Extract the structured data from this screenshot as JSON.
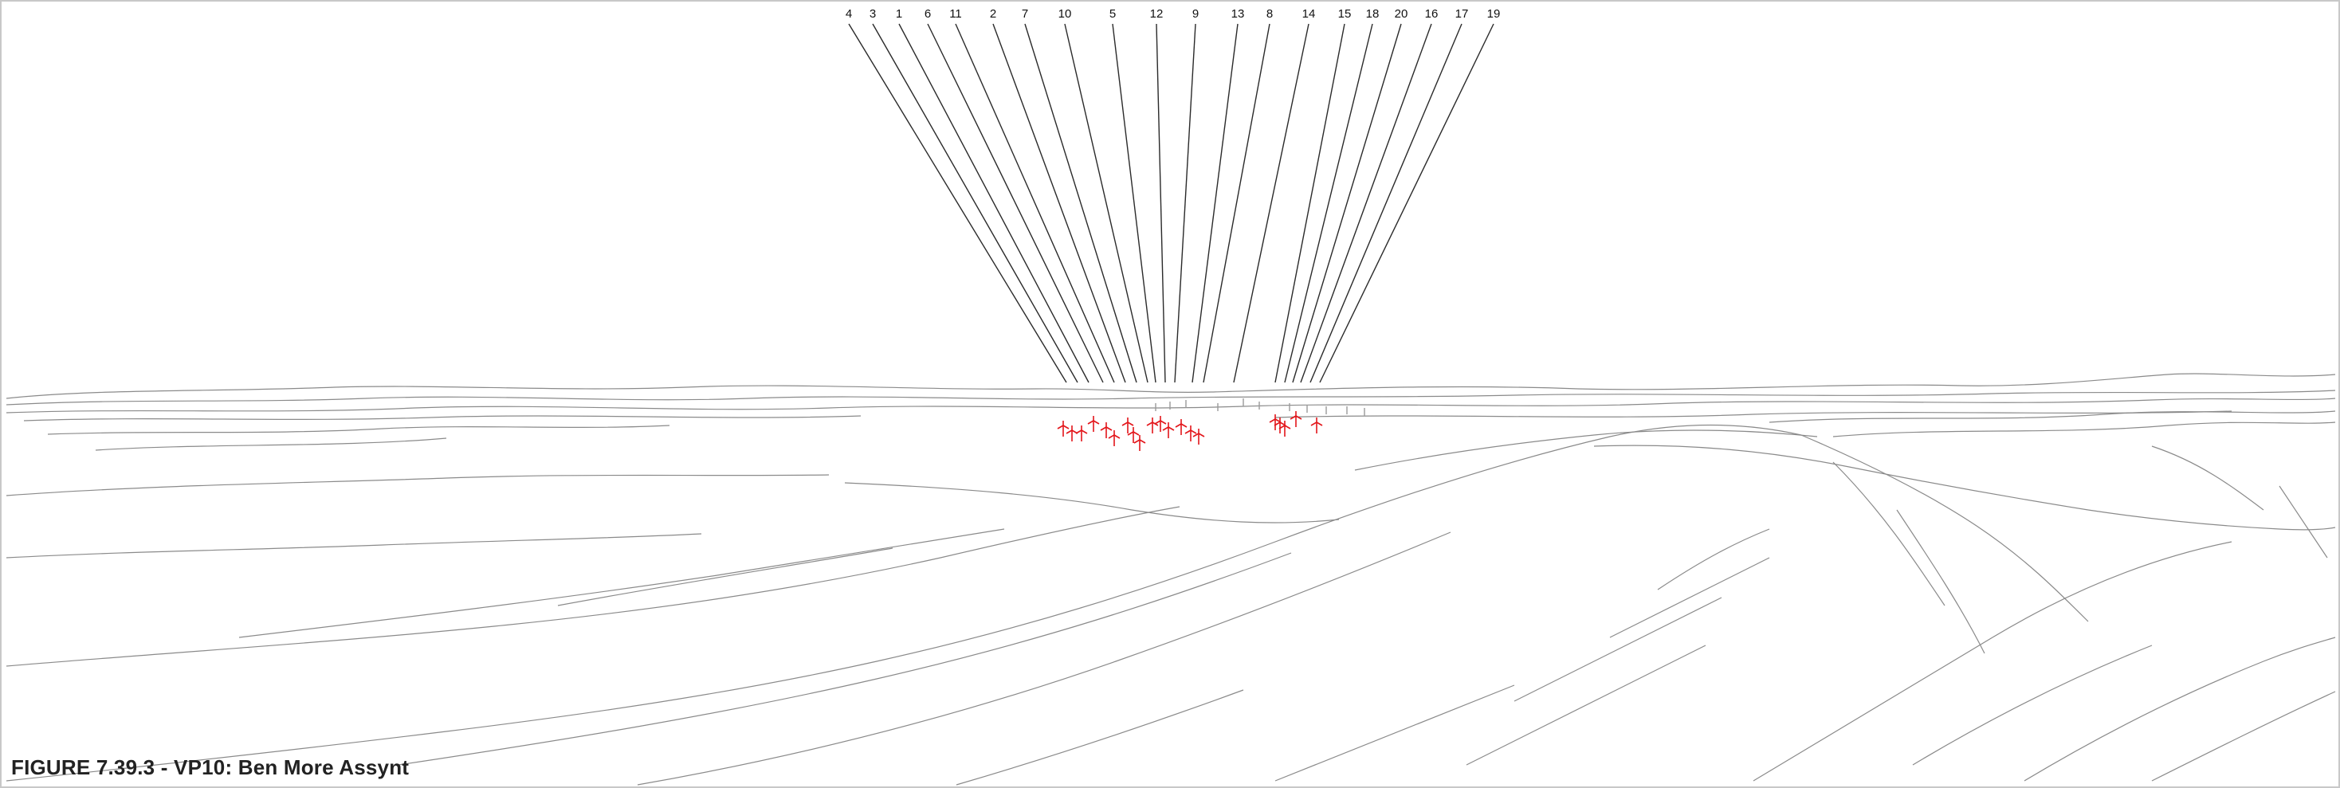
{
  "figure": {
    "caption": "FIGURE 7.39.3 - VP10: Ben More Assynt"
  },
  "turbines": [
    {
      "id": "4"
    },
    {
      "id": "3"
    },
    {
      "id": "1"
    },
    {
      "id": "6"
    },
    {
      "id": "11"
    },
    {
      "id": "2"
    },
    {
      "id": "7"
    },
    {
      "id": "10"
    },
    {
      "id": "5"
    },
    {
      "id": "12"
    },
    {
      "id": "9"
    },
    {
      "id": "13"
    },
    {
      "id": "8"
    },
    {
      "id": "14"
    },
    {
      "id": "15"
    },
    {
      "id": "18"
    },
    {
      "id": "20"
    },
    {
      "id": "16"
    },
    {
      "id": "17"
    },
    {
      "id": "19"
    }
  ],
  "colors": {
    "landscape_lines": "#8a8a8a",
    "leader_lines": "#2a2a2a",
    "turbine_visible": "#e3161b",
    "turbine_hidden": "#9a9a9a",
    "frame_border": "#c8c8c8"
  }
}
